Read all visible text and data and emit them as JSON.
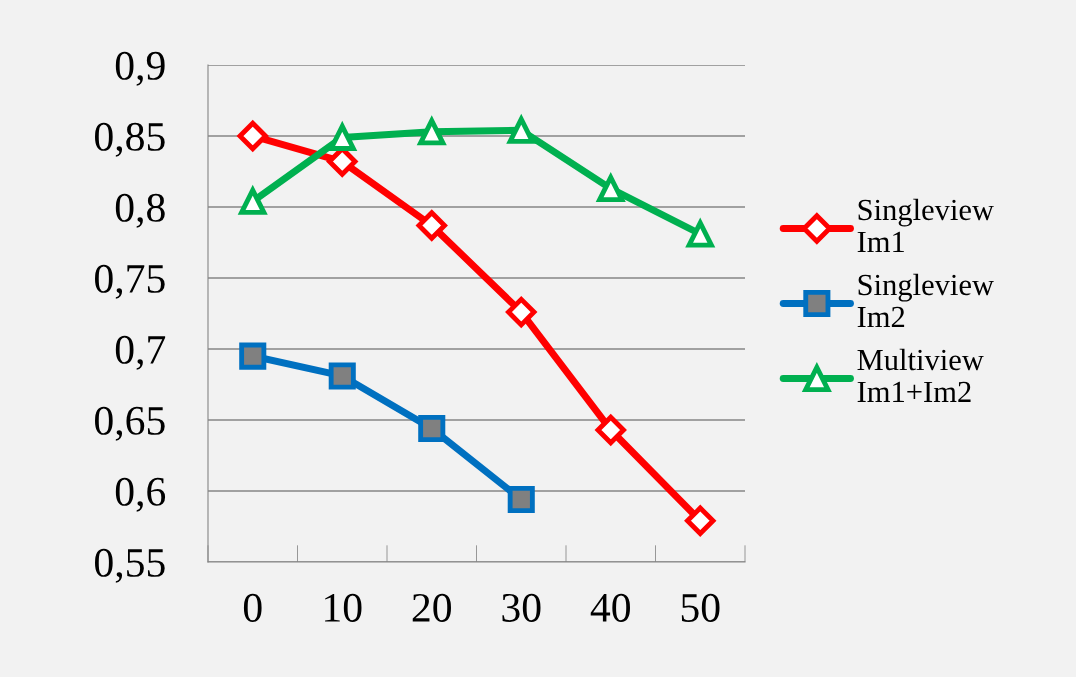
{
  "chart_data": {
    "type": "line",
    "categories": [
      "0",
      "10",
      "20",
      "30",
      "40",
      "50"
    ],
    "series": [
      {
        "name": "Singleview\nIm1",
        "color": "#ff0000",
        "marker": "diamond",
        "values": [
          0.85,
          0.832,
          0.787,
          0.726,
          0.643,
          0.579
        ]
      },
      {
        "name": "Singleview\nIm2",
        "color": "#0070c0",
        "marker": "square",
        "values": [
          0.695,
          0.681,
          0.644,
          0.594,
          null,
          null
        ]
      },
      {
        "name": "Multiview\nIm1+Im2",
        "color": "#00b050",
        "marker": "triangle",
        "values": [
          0.804,
          0.849,
          0.853,
          0.854,
          0.813,
          0.781
        ]
      }
    ],
    "ylim": [
      0.55,
      0.9
    ],
    "yticks": [
      {
        "value": 0.55,
        "label": "0,55"
      },
      {
        "value": 0.6,
        "label": "0,6"
      },
      {
        "value": 0.65,
        "label": "0,65"
      },
      {
        "value": 0.7,
        "label": "0,7"
      },
      {
        "value": 0.75,
        "label": "0,75"
      },
      {
        "value": 0.8,
        "label": "0,8"
      },
      {
        "value": 0.85,
        "label": "0,85"
      },
      {
        "value": 0.9,
        "label": "0,9"
      }
    ],
    "grid": "y",
    "legend": "right",
    "line_style": "solid"
  }
}
